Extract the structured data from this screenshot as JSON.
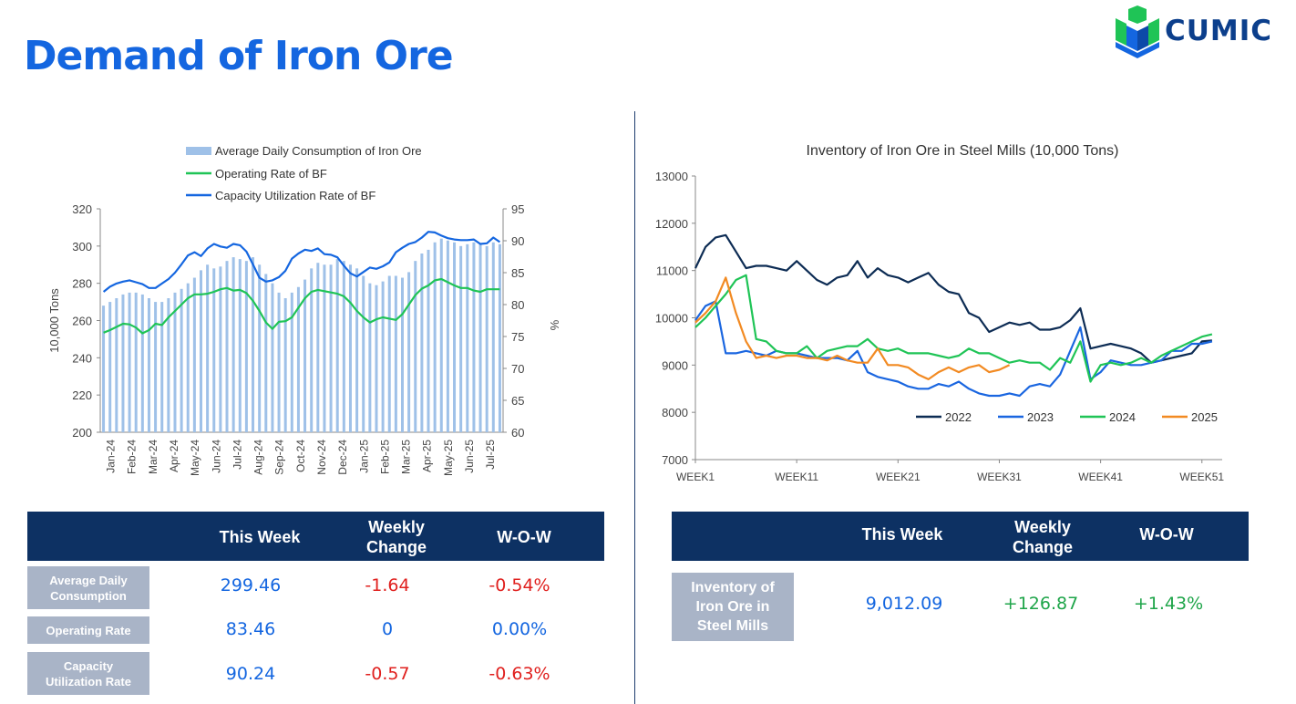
{
  "header": {
    "title": "Demand of Iron Ore",
    "logo_text": "CUMIC"
  },
  "chart_data": [
    {
      "type": "bar+line",
      "title": "",
      "legend": [
        "Average Daily Consumption of Iron Ore",
        "Operating Rate of BF",
        "Capacity Utilization Rate of BF"
      ],
      "ylabel": "10,000 Tons",
      "y2label": "%",
      "ylim": [
        200,
        320
      ],
      "y2lim": [
        60,
        95
      ],
      "yticks": [
        200,
        220,
        240,
        260,
        280,
        300,
        320
      ],
      "y2ticks": [
        60,
        65,
        70,
        75,
        80,
        85,
        90,
        95
      ],
      "xticks": [
        "Jan-24",
        "Feb-24",
        "Mar-24",
        "Apr-24",
        "May-24",
        "Jun-24",
        "Jul-24",
        "Aug-24",
        "Sep-24",
        "Oct-24",
        "Nov-24",
        "Dec-24",
        "Jan-25",
        "Feb-25",
        "Mar-25",
        "Apr-25",
        "May-25",
        "Jun-25",
        "Jul-25"
      ],
      "series": [
        {
          "name": "Average Daily Consumption of Iron Ore",
          "axis": "left",
          "color": "#9fc1e8",
          "values": [
            268,
            270,
            272,
            274,
            275,
            275,
            274,
            272,
            270,
            270,
            272,
            275,
            277,
            280,
            283,
            287,
            290,
            288,
            289,
            292,
            294,
            293,
            292,
            294,
            290,
            285,
            280,
            275,
            272,
            275,
            278,
            282,
            288,
            291,
            290,
            290,
            293,
            292,
            290,
            288,
            284,
            280,
            279,
            281,
            284,
            284,
            283,
            286,
            292,
            296,
            298,
            302,
            304,
            303,
            302,
            300,
            301,
            302,
            301,
            300,
            302,
            301
          ]
        },
        {
          "name": "Operating Rate of BF",
          "axis": "right",
          "color": "#1fc456",
          "values": [
            75.6,
            76.0,
            76.5,
            77.0,
            76.9,
            76.4,
            75.5,
            76.0,
            77.0,
            76.8,
            78.0,
            79.0,
            80.0,
            81.0,
            81.6,
            81.6,
            81.7,
            82.0,
            82.4,
            82.6,
            82.2,
            82.3,
            81.8,
            80.6,
            79.0,
            77.2,
            76.2,
            77.3,
            77.4,
            78.0,
            79.5,
            81.0,
            82.0,
            82.3,
            82.1,
            81.9,
            81.7,
            81.3,
            80.3,
            79.0,
            78.0,
            77.2,
            77.7,
            78.0,
            77.8,
            77.6,
            78.5,
            80.0,
            81.5,
            82.5,
            83.0,
            83.8,
            84.0,
            83.5,
            83.0,
            82.6,
            82.6,
            82.2,
            82.0,
            82.4,
            82.4,
            82.4
          ]
        },
        {
          "name": "Capacity Utilization Rate of BF",
          "axis": "right",
          "color": "#1466e0",
          "values": [
            82.0,
            82.8,
            83.3,
            83.6,
            83.8,
            83.5,
            83.2,
            82.6,
            82.6,
            83.3,
            84.0,
            85.0,
            86.3,
            87.7,
            88.2,
            87.6,
            88.8,
            89.5,
            89.1,
            88.9,
            89.5,
            89.3,
            88.3,
            86.3,
            84.2,
            83.6,
            83.8,
            84.3,
            85.3,
            87.2,
            88.0,
            88.6,
            88.4,
            88.8,
            87.9,
            87.8,
            87.4,
            86.1,
            84.9,
            84.4,
            85.1,
            85.8,
            85.6,
            86.0,
            86.6,
            88.2,
            88.9,
            89.5,
            89.8,
            90.5,
            91.4,
            91.3,
            90.8,
            90.4,
            90.2,
            90.1,
            90.1,
            90.2,
            89.5,
            89.6,
            90.5,
            89.8
          ]
        }
      ]
    },
    {
      "type": "line",
      "title": "Inventory of Iron Ore in Steel Mills (10,000 Tons)",
      "ylim": [
        7000,
        13000
      ],
      "yticks": [
        7000,
        8000,
        9000,
        10000,
        11000,
        12000,
        13000
      ],
      "xticks": [
        "WEEK1",
        "WEEK11",
        "WEEK21",
        "WEEK31",
        "WEEK41",
        "WEEK51"
      ],
      "x_range": [
        1,
        53
      ],
      "series": [
        {
          "name": "2022",
          "color": "#0d2c54",
          "values": [
            11050,
            11500,
            11700,
            11750,
            11400,
            11050,
            11100,
            11100,
            11050,
            11000,
            11200,
            11000,
            10800,
            10700,
            10850,
            10900,
            11200,
            10850,
            11050,
            10900,
            10850,
            10750,
            10850,
            10950,
            10700,
            10550,
            10500,
            10100,
            10000,
            9700,
            9800,
            9900,
            9850,
            9900,
            9750,
            9750,
            9800,
            9950,
            10200,
            9350,
            9400,
            9450,
            9400,
            9350,
            9250,
            9050,
            9100,
            9150,
            9200,
            9250,
            9500,
            9520
          ]
        },
        {
          "name": "2023",
          "color": "#1a66e0",
          "values": [
            9950,
            10250,
            10350,
            9250,
            9250,
            9300,
            9250,
            9200,
            9300,
            9250,
            9250,
            9200,
            9150,
            9150,
            9150,
            9100,
            9300,
            8850,
            8750,
            8700,
            8650,
            8550,
            8500,
            8500,
            8600,
            8550,
            8650,
            8500,
            8400,
            8350,
            8350,
            8400,
            8350,
            8550,
            8600,
            8550,
            8800,
            9300,
            9800,
            8700,
            8850,
            9100,
            9050,
            9000,
            9000,
            9050,
            9100,
            9300,
            9300,
            9450,
            9450,
            9500
          ]
        },
        {
          "name": "2024",
          "color": "#1fc456",
          "values": [
            9800,
            10000,
            10250,
            10500,
            10800,
            10900,
            9550,
            9500,
            9300,
            9250,
            9250,
            9400,
            9150,
            9300,
            9350,
            9400,
            9400,
            9550,
            9350,
            9300,
            9350,
            9250,
            9250,
            9250,
            9200,
            9150,
            9200,
            9350,
            9250,
            9250,
            9150,
            9050,
            9100,
            9050,
            9050,
            8900,
            9150,
            9050,
            9500,
            8650,
            9000,
            9050,
            9000,
            9050,
            9150,
            9050,
            9200,
            9300,
            9400,
            9500,
            9600,
            9650
          ]
        },
        {
          "name": "2025",
          "color": "#f28a22",
          "values": [
            9900,
            10100,
            10350,
            10850,
            10100,
            9500,
            9150,
            9200,
            9150,
            9200,
            9200,
            9150,
            9150,
            9100,
            9200,
            9100,
            9050,
            9050,
            9350,
            9000,
            9000,
            8950,
            8800,
            8700,
            8850,
            8950,
            8850,
            8950,
            9000,
            8850,
            8900,
            9000
          ]
        }
      ]
    }
  ],
  "table_demand": {
    "headers": [
      "This Week",
      "Weekly\nChange",
      "W-O-W"
    ],
    "rows": [
      {
        "label": "Average Daily\nConsumption",
        "this_week": "299.46",
        "weekly_change": "-1.64",
        "wow": "-0.54%"
      },
      {
        "label": "Operating Rate",
        "this_week": "83.46",
        "weekly_change": "0",
        "wow": "0.00%"
      },
      {
        "label": "Capacity\nUtilization Rate",
        "this_week": "90.24",
        "weekly_change": "-0.57",
        "wow": "-0.63%"
      }
    ]
  },
  "table_inventory": {
    "headers": [
      "This Week",
      "Weekly\nChange",
      "W-O-W"
    ],
    "rows": [
      {
        "label": "Inventory of\nIron Ore in\nSteel Mills",
        "this_week": "9,012.09",
        "weekly_change": "+126.87",
        "wow": "+1.43%"
      }
    ]
  }
}
